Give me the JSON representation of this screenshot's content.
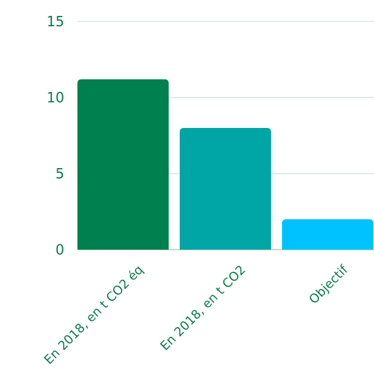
{
  "chart_data": {
    "type": "bar",
    "categories": [
      "En 2018, en t CO2 éq",
      "En 2018, en t CO2",
      "Objectif"
    ],
    "values": [
      11.2,
      8.0,
      2.0
    ],
    "colors": [
      "#007f4f",
      "#00a5a5",
      "#00c2ff"
    ],
    "ylim": [
      0,
      15
    ],
    "yticks": [
      0,
      5,
      10,
      15
    ],
    "grid": true,
    "title": "",
    "xlabel": "",
    "ylabel": ""
  }
}
